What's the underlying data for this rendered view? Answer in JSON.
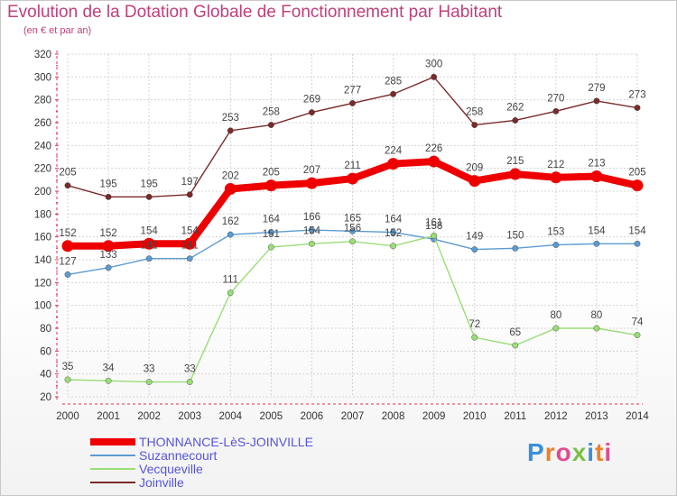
{
  "header": {
    "title": "Evolution de la Dotation Globale de Fonctionnement par Habitant",
    "subtitle": "(en € et par an)"
  },
  "logo": {
    "text": "Proxiti",
    "colors": [
      "#3a8fd8",
      "#e8832a",
      "#e04b8f",
      "#7bc043",
      "#3a8fd8",
      "#e8832a",
      "#e04b8f"
    ]
  },
  "chart_data": {
    "type": "line",
    "x": [
      2000,
      2001,
      2002,
      2003,
      2004,
      2005,
      2006,
      2007,
      2008,
      2009,
      2010,
      2011,
      2012,
      2013,
      2014
    ],
    "ylim": [
      20,
      320
    ],
    "yticks": [
      20,
      40,
      60,
      80,
      100,
      120,
      140,
      160,
      180,
      200,
      220,
      240,
      260,
      280,
      300,
      320
    ],
    "grid": true,
    "legend_position": "bottom-left",
    "series": [
      {
        "name": "THONNANCE-LèS-JOINVILLE",
        "color": "#ee0000",
        "emphasis": true,
        "values": [
          152,
          152,
          154,
          154,
          202,
          205,
          207,
          211,
          224,
          226,
          209,
          215,
          212,
          213,
          205
        ],
        "labels": [
          "152",
          "152",
          "154",
          "154",
          "202",
          "205",
          "207",
          "211",
          "224",
          "226",
          "209",
          "215",
          "212",
          "213",
          "205"
        ]
      },
      {
        "name": "Suzannecourt",
        "color": "#5c9bd1",
        "values": [
          127,
          133,
          141,
          141,
          162,
          164,
          166,
          165,
          164,
          158,
          149,
          150,
          153,
          154,
          154
        ],
        "labels": [
          "127",
          "133",
          "141",
          "141",
          "162",
          "164",
          "166",
          "165",
          "164",
          "158",
          "149",
          "150",
          "153",
          "154",
          "154"
        ]
      },
      {
        "name": "Vecqueville",
        "color": "#99dd77",
        "values": [
          35,
          34,
          33,
          33,
          111,
          151,
          154,
          156,
          152,
          161,
          72,
          65,
          80,
          80,
          74
        ],
        "labels": [
          "35",
          "34",
          "33",
          "33",
          "111",
          "151",
          "154",
          "156",
          "152",
          "161",
          "72",
          "65",
          "80",
          "80",
          "74"
        ]
      },
      {
        "name": "Joinville",
        "color": "#7a2a2a",
        "values": [
          205,
          195,
          195,
          197,
          253,
          258,
          269,
          277,
          285,
          300,
          258,
          262,
          270,
          279,
          273
        ],
        "labels": [
          "205",
          "195",
          "195",
          "197",
          "253",
          "258",
          "269",
          "277",
          "285",
          "300",
          "258",
          "262",
          "270",
          "279",
          "273"
        ]
      }
    ]
  }
}
